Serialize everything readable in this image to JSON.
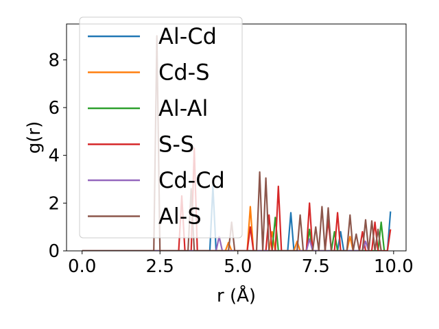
{
  "chart_data": {
    "type": "line",
    "title": "",
    "xlabel": "r (Å)",
    "ylabel": "g(r)",
    "xlim": [
      -0.5,
      10.4
    ],
    "ylim": [
      0,
      9.5
    ],
    "xticks": [
      0.0,
      2.5,
      5.0,
      7.5,
      10.0
    ],
    "xtick_labels": [
      "0.0",
      "2.5",
      "5.0",
      "7.5",
      "10.0"
    ],
    "yticks": [
      0,
      2,
      4,
      6,
      8
    ],
    "ytick_labels": [
      "0",
      "2",
      "4",
      "6",
      "8"
    ],
    "grid": false,
    "legend_position": "upper-left",
    "series": [
      {
        "name": "Al-Cd",
        "color": "#1f77b4",
        "x": [
          0.0,
          4.0,
          4.1,
          4.2,
          4.3,
          6.6,
          6.7,
          6.8,
          8.2,
          8.3,
          8.4,
          9.7,
          9.8,
          9.9
        ],
        "y": [
          0,
          0,
          0,
          2.7,
          0,
          0,
          1.6,
          0,
          0,
          0.8,
          0,
          0,
          0,
          1.65
        ]
      },
      {
        "name": "Cd-S",
        "color": "#ff7f0e",
        "x": [
          0.0,
          4.6,
          4.7,
          4.8,
          5.3,
          5.4,
          5.5,
          6.0,
          6.1,
          6.2,
          6.8,
          6.9,
          7.0,
          8.5,
          8.6,
          8.7
        ],
        "y": [
          0,
          0,
          0.35,
          0,
          0,
          1.85,
          0,
          0,
          0.8,
          0,
          0,
          0.4,
          0,
          0,
          0.6,
          0
        ]
      },
      {
        "name": "Al-Al",
        "color": "#2ca02c",
        "x": [
          0.0,
          6.1,
          6.2,
          6.3,
          7.2,
          7.3,
          7.4,
          8.0,
          8.1,
          8.2,
          9.5,
          9.6,
          9.7
        ],
        "y": [
          0,
          0,
          1.4,
          0,
          0,
          0.9,
          0,
          0,
          0.8,
          0,
          0,
          1.2,
          0
        ]
      },
      {
        "name": "S-S",
        "color": "#d62728",
        "x": [
          0.0,
          3.1,
          3.2,
          3.3,
          3.5,
          3.6,
          3.7,
          5.3,
          5.4,
          5.5,
          5.9,
          6.0,
          6.1,
          6.2,
          6.3,
          6.4,
          7.2,
          7.3,
          7.4,
          7.8,
          7.9,
          8.0,
          8.1,
          8.2,
          8.3,
          8.9,
          9.0,
          9.1,
          9.3,
          9.4,
          9.5,
          9.8,
          9.9
        ],
        "y": [
          0,
          0,
          2.3,
          0,
          0,
          4.3,
          0,
          0,
          1.0,
          0,
          0,
          1.5,
          0,
          0,
          2.7,
          0,
          0,
          2.0,
          0,
          0,
          1.3,
          0,
          0,
          1.6,
          0,
          0,
          0.8,
          0,
          0,
          1.2,
          0,
          0,
          0.9
        ]
      },
      {
        "name": "Cd-Cd",
        "color": "#9467bd",
        "x": [
          0.0,
          4.3,
          4.4,
          4.5,
          7.2,
          7.3,
          7.4,
          9.0,
          9.1,
          9.2
        ],
        "y": [
          0,
          0,
          0.6,
          0,
          0,
          0.5,
          0,
          0,
          0.4,
          0
        ]
      },
      {
        "name": "Al-S",
        "color": "#8c564b",
        "x": [
          0.0,
          2.3,
          2.4,
          2.5,
          2.6,
          2.7,
          3.4,
          3.5,
          3.6,
          4.7,
          4.8,
          4.9,
          5.6,
          5.7,
          5.8,
          5.9,
          6.0,
          6.1,
          6.9,
          7.0,
          7.1,
          7.4,
          7.5,
          7.6,
          7.7,
          7.8,
          7.9,
          8.0,
          8.5,
          8.6,
          8.7,
          8.8,
          8.9,
          9.0,
          9.1,
          9.2,
          9.3,
          9.4,
          9.5,
          9.6
        ],
        "y": [
          0,
          0,
          9.0,
          0,
          0,
          0,
          0,
          2.6,
          0,
          0,
          1.2,
          0,
          0,
          3.3,
          0,
          3.05,
          0,
          0,
          0,
          1.5,
          0,
          0,
          1.0,
          0,
          1.85,
          0,
          1.8,
          0,
          0,
          1.5,
          0,
          0.7,
          0,
          0,
          1.3,
          0,
          1.25,
          0,
          0.9,
          0
        ]
      }
    ]
  }
}
